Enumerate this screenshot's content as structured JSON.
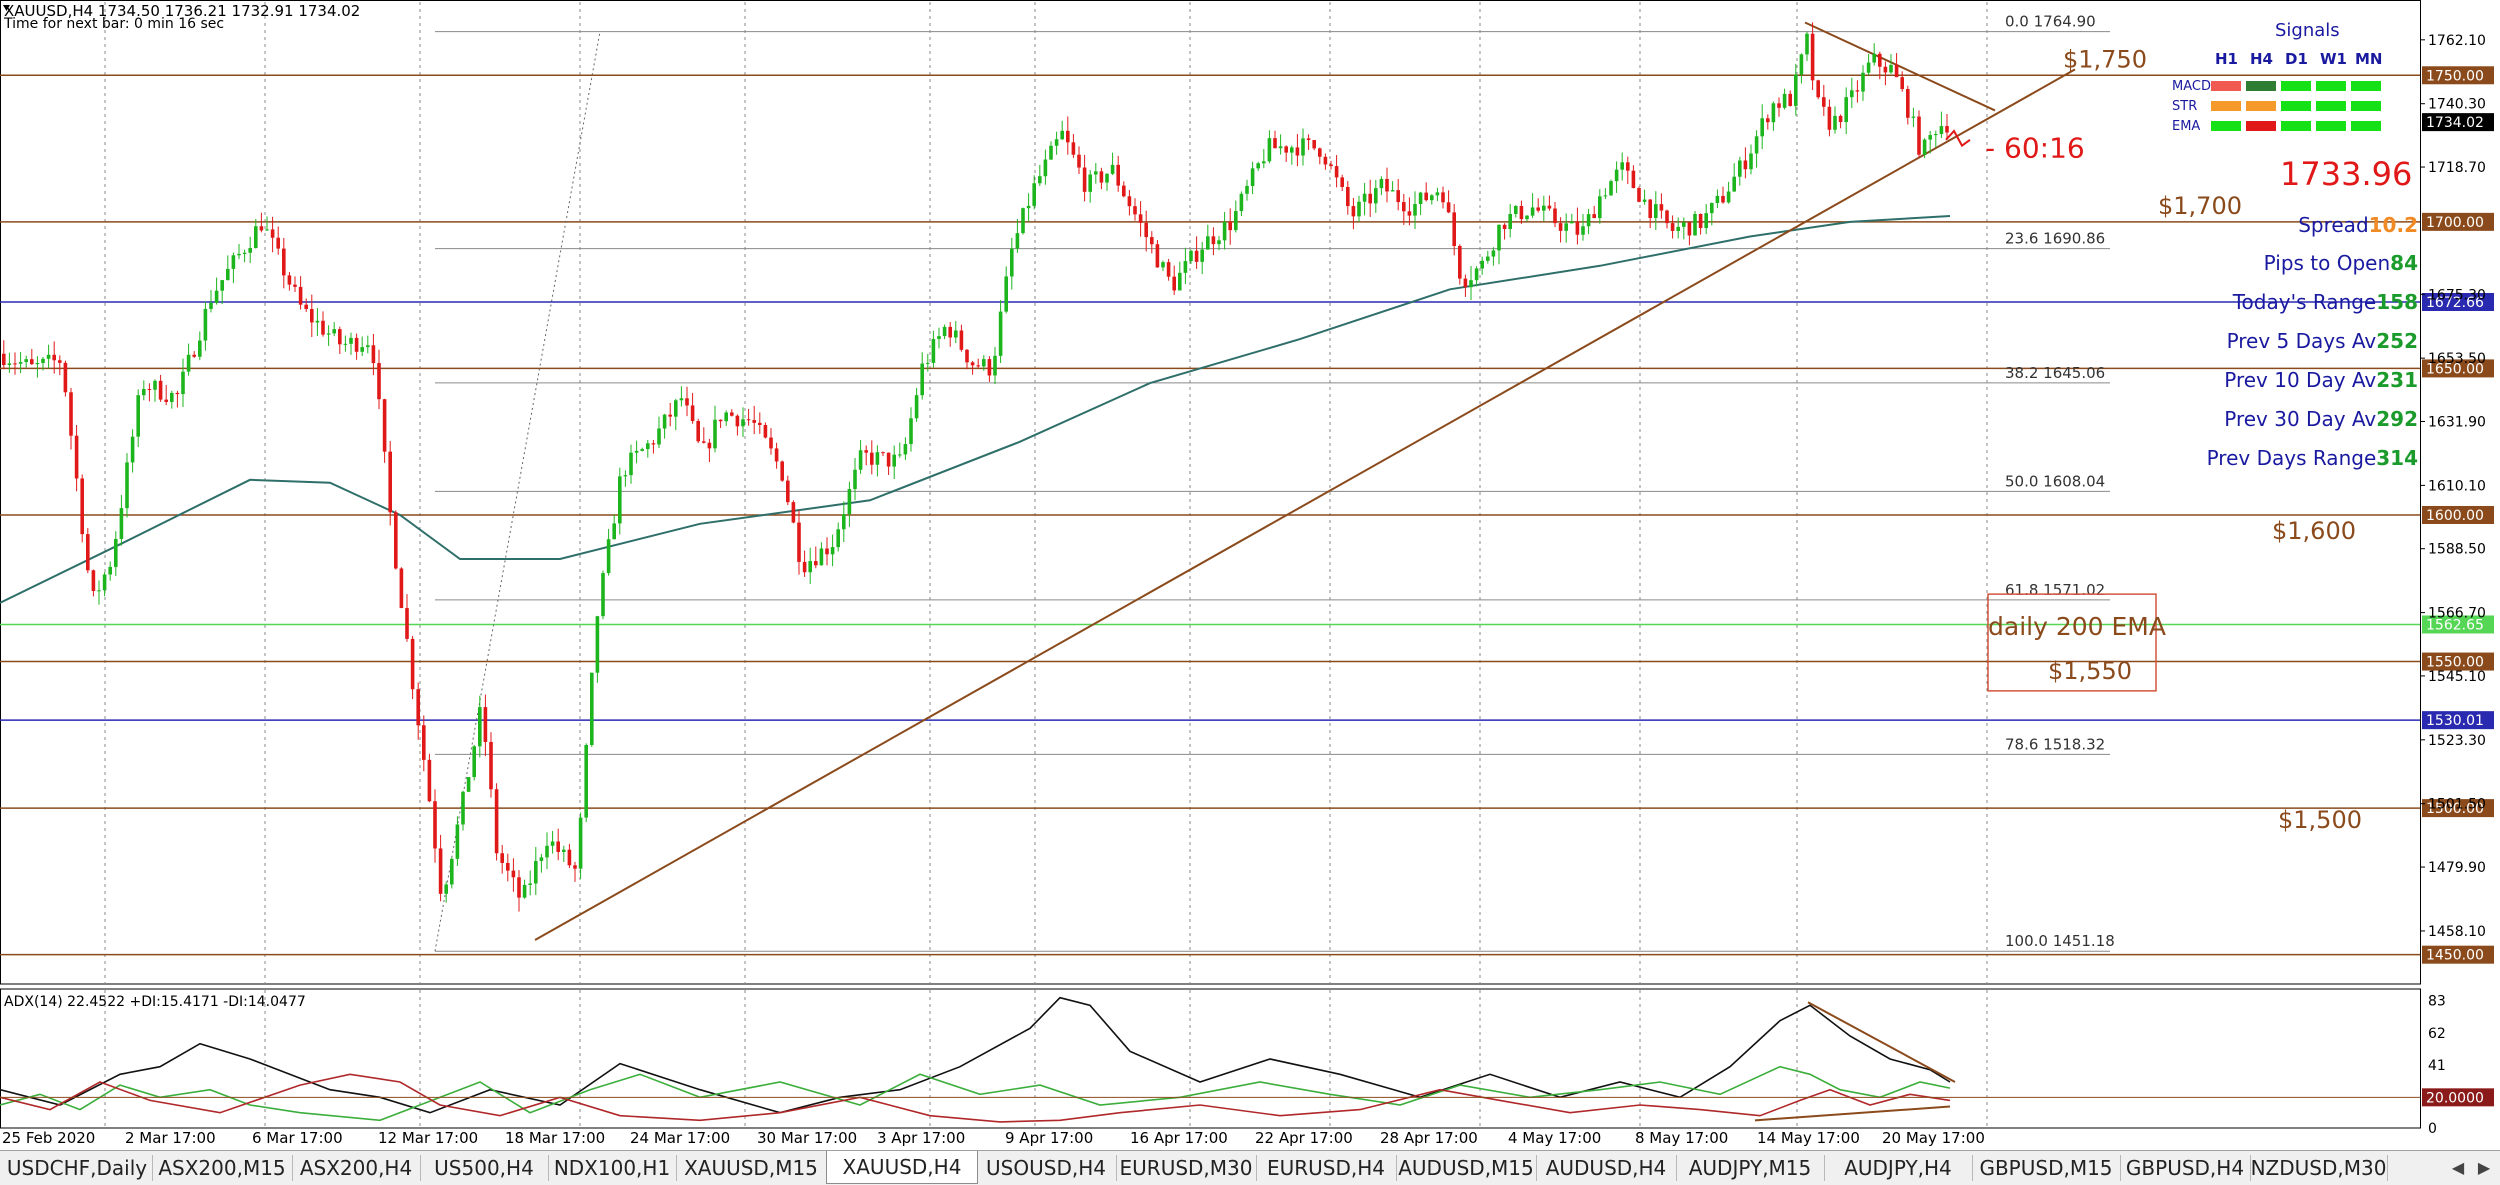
{
  "header": {
    "title": "XAUUSD,H4  1734.50 1736.21 1732.91 1734.02",
    "countdown": "Time for next bar: 0 min 16 sec"
  },
  "chart_data": {
    "type": "candlestick",
    "symbol": "XAUUSD",
    "timeframe": "H4",
    "ohlc_current": {
      "open": 1734.5,
      "high": 1736.21,
      "low": 1732.91,
      "close": 1734.02
    },
    "price_range": [
      1440,
      1775
    ],
    "y_ticks": [
      "1762.10",
      "1740.30",
      "1718.70",
      "1675.30",
      "1653.50",
      "1631.90",
      "1610.10",
      "1588.50",
      "1566.70",
      "1545.10",
      "1523.30",
      "1501.50",
      "1479.90",
      "1458.10"
    ],
    "x_ticks": [
      "25 Feb 2020",
      "2 Mar 17:00",
      "6 Mar 17:00",
      "12 Mar 17:00",
      "18 Mar 17:00",
      "24 Mar 17:00",
      "30 Mar 17:00",
      "3 Apr 17:00",
      "9 Apr 17:00",
      "16 Apr 17:00",
      "22 Apr 17:00",
      "28 Apr 17:00",
      "4 May 17:00",
      "8 May 17:00",
      "14 May 17:00",
      "20 May 17:00"
    ],
    "price_path": [
      [
        0,
        1655
      ],
      [
        30,
        1650
      ],
      [
        60,
        1653
      ],
      [
        90,
        1570
      ],
      [
        110,
        1585
      ],
      [
        140,
        1645
      ],
      [
        175,
        1640
      ],
      [
        210,
        1675
      ],
      [
        260,
        1700
      ],
      [
        300,
        1670
      ],
      [
        340,
        1658
      ],
      [
        370,
        1660
      ],
      [
        390,
        1595
      ],
      [
        410,
        1545
      ],
      [
        425,
        1510
      ],
      [
        440,
        1470
      ],
      [
        460,
        1500
      ],
      [
        480,
        1535
      ],
      [
        495,
        1485
      ],
      [
        520,
        1468
      ],
      [
        545,
        1490
      ],
      [
        575,
        1478
      ],
      [
        595,
        1565
      ],
      [
        620,
        1615
      ],
      [
        650,
        1625
      ],
      [
        680,
        1640
      ],
      [
        700,
        1620
      ],
      [
        720,
        1635
      ],
      [
        750,
        1632
      ],
      [
        780,
        1615
      ],
      [
        800,
        1583
      ],
      [
        830,
        1590
      ],
      [
        860,
        1620
      ],
      [
        900,
        1618
      ],
      [
        920,
        1650
      ],
      [
        945,
        1665
      ],
      [
        970,
        1652
      ],
      [
        990,
        1650
      ],
      [
        1010,
        1690
      ],
      [
        1030,
        1710
      ],
      [
        1060,
        1730
      ],
      [
        1085,
        1712
      ],
      [
        1110,
        1718
      ],
      [
        1140,
        1698
      ],
      [
        1170,
        1678
      ],
      [
        1200,
        1692
      ],
      [
        1230,
        1700
      ],
      [
        1265,
        1725
      ],
      [
        1295,
        1726
      ],
      [
        1320,
        1725
      ],
      [
        1350,
        1702
      ],
      [
        1380,
        1712
      ],
      [
        1410,
        1705
      ],
      [
        1440,
        1712
      ],
      [
        1460,
        1680
      ],
      [
        1480,
        1685
      ],
      [
        1500,
        1700
      ],
      [
        1530,
        1705
      ],
      [
        1555,
        1700
      ],
      [
        1580,
        1696
      ],
      [
        1600,
        1710
      ],
      [
        1620,
        1718
      ],
      [
        1645,
        1706
      ],
      [
        1670,
        1697
      ],
      [
        1700,
        1700
      ],
      [
        1720,
        1708
      ],
      [
        1745,
        1722
      ],
      [
        1770,
        1740
      ],
      [
        1790,
        1742
      ],
      [
        1805,
        1762
      ],
      [
        1815,
        1740
      ],
      [
        1830,
        1733
      ],
      [
        1850,
        1742
      ],
      [
        1870,
        1755
      ],
      [
        1890,
        1752
      ],
      [
        1905,
        1740
      ],
      [
        1920,
        1723
      ],
      [
        1935,
        1733
      ],
      [
        1950,
        1734
      ]
    ],
    "ema200_path": [
      [
        0,
        1570
      ],
      [
        120,
        1590
      ],
      [
        250,
        1612
      ],
      [
        330,
        1611
      ],
      [
        400,
        1600
      ],
      [
        460,
        1585
      ],
      [
        560,
        1585
      ],
      [
        700,
        1597
      ],
      [
        870,
        1605
      ],
      [
        1020,
        1625
      ],
      [
        1150,
        1645
      ],
      [
        1300,
        1660
      ],
      [
        1450,
        1677
      ],
      [
        1600,
        1685
      ],
      [
        1750,
        1695
      ],
      [
        1850,
        1700
      ],
      [
        1950,
        1702
      ]
    ],
    "trendline": {
      "from": [
        535,
        1455
      ],
      "to": [
        2075,
        1752
      ]
    },
    "falling_trendline": {
      "from": [
        1805,
        1768
      ],
      "to": [
        1995,
        1738
      ]
    },
    "fib_start": {
      "x": 435,
      "price": 1451.18
    },
    "fib_end": {
      "x": 600,
      "price": 1764.9
    },
    "horizontal_levels": [
      {
        "price": 1750.0,
        "label": "1750.00",
        "text": "$1,750",
        "color": "#8b4a1b"
      },
      {
        "price": 1700.0,
        "label": "1700.00",
        "text": "$1,700",
        "color": "#8b4a1b"
      },
      {
        "price": 1672.66,
        "label": "1672.66",
        "text": "",
        "color": "#2a2ab0"
      },
      {
        "price": 1650.0,
        "label": "1650.00",
        "text": "",
        "color": "#8b4a1b"
      },
      {
        "price": 1600.0,
        "label": "1600.00",
        "text": "$1,600",
        "color": "#8b4a1b"
      },
      {
        "price": 1562.65,
        "label": "1562.65",
        "text": "",
        "color": "#55d655"
      },
      {
        "price": 1550.0,
        "label": "1550.00",
        "text": "$1,550",
        "color": "#8b4a1b"
      },
      {
        "price": 1530.01,
        "label": "1530.01",
        "text": "",
        "color": "#2a2ab0"
      },
      {
        "price": 1500.0,
        "label": "1500.00",
        "text": "$1,500",
        "color": "#8b4a1b"
      },
      {
        "price": 1450.0,
        "label": "1450.00",
        "text": "",
        "color": "#8b4a1b"
      }
    ],
    "current_price_label": "1734.02",
    "fibonacci": [
      {
        "ratio": "0.0",
        "price": 1764.9
      },
      {
        "ratio": "23.6",
        "price": 1690.86
      },
      {
        "ratio": "38.2",
        "price": 1645.06
      },
      {
        "ratio": "50.0",
        "price": 1608.04
      },
      {
        "ratio": "61.8",
        "price": 1571.02
      },
      {
        "ratio": "78.6",
        "price": 1518.32
      },
      {
        "ratio": "100.0",
        "price": 1451.18
      }
    ],
    "annotations": {
      "countdown_label": "60:16",
      "current_price_big": "1733.96",
      "ema_box_text": "daily 200 EMA",
      "ema_box_price": "$1,550"
    },
    "adx": {
      "title": "ADX(14) 22.4522 +DI:15.4171 -DI:14.0477",
      "y_ticks": [
        "83",
        "62",
        "41",
        "0"
      ],
      "level_label": "20.0000",
      "level": 20,
      "range": [
        0,
        90
      ],
      "adx_path": [
        [
          0,
          25
        ],
        [
          60,
          15
        ],
        [
          120,
          35
        ],
        [
          160,
          40
        ],
        [
          200,
          55
        ],
        [
          250,
          45
        ],
        [
          330,
          25
        ],
        [
          380,
          20
        ],
        [
          430,
          10
        ],
        [
          490,
          25
        ],
        [
          560,
          15
        ],
        [
          620,
          42
        ],
        [
          700,
          25
        ],
        [
          780,
          10
        ],
        [
          840,
          20
        ],
        [
          900,
          25
        ],
        [
          960,
          40
        ],
        [
          1030,
          65
        ],
        [
          1060,
          85
        ],
        [
          1090,
          80
        ],
        [
          1130,
          50
        ],
        [
          1200,
          30
        ],
        [
          1270,
          45
        ],
        [
          1340,
          35
        ],
        [
          1420,
          20
        ],
        [
          1490,
          35
        ],
        [
          1560,
          20
        ],
        [
          1620,
          30
        ],
        [
          1680,
          20
        ],
        [
          1730,
          40
        ],
        [
          1780,
          70
        ],
        [
          1810,
          80
        ],
        [
          1850,
          60
        ],
        [
          1890,
          45
        ],
        [
          1930,
          38
        ],
        [
          1950,
          30
        ]
      ],
      "pdi_path": [
        [
          0,
          15
        ],
        [
          40,
          22
        ],
        [
          80,
          12
        ],
        [
          120,
          28
        ],
        [
          160,
          20
        ],
        [
          210,
          25
        ],
        [
          250,
          15
        ],
        [
          300,
          10
        ],
        [
          380,
          5
        ],
        [
          420,
          15
        ],
        [
          480,
          30
        ],
        [
          530,
          10
        ],
        [
          590,
          25
        ],
        [
          640,
          35
        ],
        [
          700,
          20
        ],
        [
          780,
          30
        ],
        [
          860,
          15
        ],
        [
          920,
          35
        ],
        [
          980,
          22
        ],
        [
          1040,
          28
        ],
        [
          1100,
          15
        ],
        [
          1180,
          20
        ],
        [
          1260,
          30
        ],
        [
          1330,
          22
        ],
        [
          1400,
          15
        ],
        [
          1460,
          28
        ],
        [
          1530,
          20
        ],
        [
          1600,
          25
        ],
        [
          1660,
          30
        ],
        [
          1720,
          22
        ],
        [
          1780,
          40
        ],
        [
          1810,
          35
        ],
        [
          1840,
          25
        ],
        [
          1880,
          20
        ],
        [
          1920,
          30
        ],
        [
          1950,
          26
        ]
      ],
      "mdi_path": [
        [
          0,
          20
        ],
        [
          50,
          12
        ],
        [
          100,
          30
        ],
        [
          150,
          18
        ],
        [
          220,
          10
        ],
        [
          300,
          28
        ],
        [
          350,
          35
        ],
        [
          400,
          30
        ],
        [
          440,
          15
        ],
        [
          500,
          8
        ],
        [
          560,
          20
        ],
        [
          620,
          8
        ],
        [
          700,
          5
        ],
        [
          780,
          10
        ],
        [
          860,
          20
        ],
        [
          930,
          8
        ],
        [
          1000,
          4
        ],
        [
          1060,
          5
        ],
        [
          1120,
          10
        ],
        [
          1200,
          15
        ],
        [
          1280,
          8
        ],
        [
          1360,
          12
        ],
        [
          1440,
          25
        ],
        [
          1500,
          18
        ],
        [
          1570,
          10
        ],
        [
          1640,
          15
        ],
        [
          1700,
          12
        ],
        [
          1760,
          8
        ],
        [
          1800,
          18
        ],
        [
          1830,
          25
        ],
        [
          1870,
          15
        ],
        [
          1910,
          22
        ],
        [
          1950,
          18
        ]
      ]
    }
  },
  "signals": {
    "title": "Signals",
    "timeframes": [
      "H1",
      "H4",
      "D1",
      "W1",
      "MN"
    ],
    "rows": [
      {
        "name": "MACD",
        "colors": [
          "#f05a50",
          "#2e7d32",
          "#16e016",
          "#16e016",
          "#16e016"
        ]
      },
      {
        "name": "STR",
        "colors": [
          "#f59a2a",
          "#f59a2a",
          "#16e016",
          "#16e016",
          "#16e016"
        ]
      },
      {
        "name": "EMA",
        "colors": [
          "#16e016",
          "#e01818",
          "#16e016",
          "#16e016",
          "#16e016"
        ]
      }
    ]
  },
  "stats": [
    {
      "label": "Spread",
      "value": "10.2",
      "value_color": "#f08a24"
    },
    {
      "label": "Pips to Open",
      "value": "84",
      "value_color": "#1b9b2b"
    },
    {
      "label": "Today's Range",
      "value": "158",
      "value_color": "#1b9b2b"
    },
    {
      "label": "Prev 5 Days Av",
      "value": "252",
      "value_color": "#1b9b2b"
    },
    {
      "label": "Prev 10 Day Av",
      "value": "231",
      "value_color": "#1b9b2b"
    },
    {
      "label": "Prev 30 Day Av",
      "value": "292",
      "value_color": "#1b9b2b"
    },
    {
      "label": "Prev Days Range",
      "value": "314",
      "value_color": "#1b9b2b"
    }
  ],
  "tabs": [
    "USDCHF,Daily",
    "ASX200,M15",
    "ASX200,H4",
    "US500,H4",
    "NDX100,H1",
    "XAUUSD,M15",
    "XAUUSD,H4",
    "USOUSD,H4",
    "EURUSD,M30",
    "EURUSD,H4",
    "AUDUSD,M15",
    "AUDUSD,H4",
    "AUDJPY,M15",
    "AUDJPY,H4",
    "GBPUSD,M15",
    "GBPUSD,H4",
    "NZDUSD,M30"
  ],
  "active_tab": 6
}
